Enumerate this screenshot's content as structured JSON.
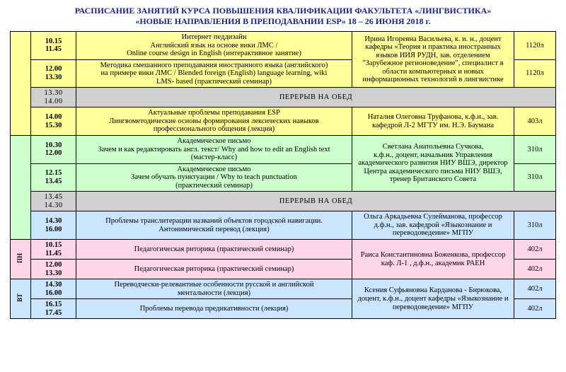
{
  "title_line1": "РАСПИСАНИЕ ЗАНЯТИЙ КУРСА ПОВЫШЕНИЯ КВАЛИФИКАЦИИ ФАКУЛЬТЕТА «ЛИНГВИСТИКА»",
  "title_line2": "«НОВЫЕ НАПРАВЛЕНИЯ В ПРЕПОДАВАНИИ ESP»   18 – 26 ИЮНЯ 2018 г.",
  "colors": {
    "yellow": "#ffff99",
    "green": "#ccffcc",
    "blue": "#cce5ff",
    "pink": "#ffd6e7",
    "gray": "#d0d0d0",
    "title_color": "#1a237e"
  },
  "break_label": "ПЕРЕРЫВ НА ОБЕД",
  "days": {
    "pn": "ПН",
    "vt": "ВТ"
  },
  "rows": [
    {
      "time1": "10.15",
      "time2": "11.45",
      "topic": "Интернет педдизайн\nАнглийский язык на основе вики ЛМС /\nOnline course design  in English  (интерактивное занятие)",
      "room": "1120л"
    },
    {
      "time1": "12.00",
      "time2": "13.30",
      "topic": "Методика смешанного преподавания иностранного языка (английского)\nна примере вики ЛМС /  Blended foreign (English) language learning, wiki\nLMS- based (практический семинар)",
      "room": "1120л"
    },
    {
      "time1": "13.30",
      "time2": "14.00"
    },
    {
      "time1": "14.00",
      "time2": "15.30",
      "topic": "Актуальные проблемы преподавания  ESP\nЛингвометодические основы формирования лексических навыков\nпрофессионального общения (лекция)",
      "teacher": "Наталия Олеговна Труфанова, к.ф.н., зав. кафедрой  Л-2 МГТУ им. Н.Э. Баумана",
      "room": "403л"
    },
    {
      "time1": "10.30",
      "time2": "12.00",
      "topic": "Академическое письмо\nЗачем и как редактировать англ. текст/  Why and how to edit an English text\n(мастер-класс)",
      "room": "310л"
    },
    {
      "time1": "12.15",
      "time2": "13.45",
      "topic": "Академическое письмо\nЗачем обучать пунктуации / Why to teach punctuation\n(практический семинар)",
      "room": "310л"
    },
    {
      "time1": "13.45",
      "time2": "14.30"
    },
    {
      "time1": "14.30",
      "time2": "16.00",
      "topic": "Проблемы транслитерации названий объектов городской навигации.\nАнтонимический перевод (лекция)",
      "teacher": "Ольга Аркадьевна Сулейманова, профессор д.ф.н., зав. кафедрой «Языкознание и переводоведение» МГПУ",
      "room": "310л"
    },
    {
      "time1": "10.15",
      "time2": "11.45",
      "topic": "Педагогическая риторика (практический семинар)",
      "room": "402л"
    },
    {
      "time1": "12.00",
      "time2": "13.30",
      "topic": "Педагогическая риторика (практический семинар)",
      "room": "402л"
    },
    {
      "time1": "14.30",
      "time2": "16.00",
      "topic": "Переводчески-релевантные особенности русской и английской\nментальности (лекция)",
      "room": "402л"
    },
    {
      "time1": "16.15",
      "time2": "17.45",
      "topic": "Проблемы перевода предикативности  (лекция)",
      "room": "402л"
    }
  ],
  "teachers": {
    "t1": "Ирина Игоревна Васильева, к. и. н.,  доцент кафедры «Теория и практика иностранных языков ИИЯ РУДН, зав. отделением \"Зарубежное регионоведение\", специалист в области компьютерных и новых информационных технологий в лингвистике",
    "t3": "Светлана Анатольевна Сучкова,\nк.ф.н., доцент, начальник Управления академического развития НИУ ВШЭ, директор Центра академического письма НИУ ВШЭ, тренер Британского Совета",
    "t4": "Раиса Константиновна Боженкова, профессор каф. Л-1 , д.ф.н., академик РАЕН",
    "t5": "Ксения Суфьяновна Карданова - Бирюкова, доцент, к.ф.н., доцент кафедры «Языкознание и переводоведение» МГПУ"
  }
}
